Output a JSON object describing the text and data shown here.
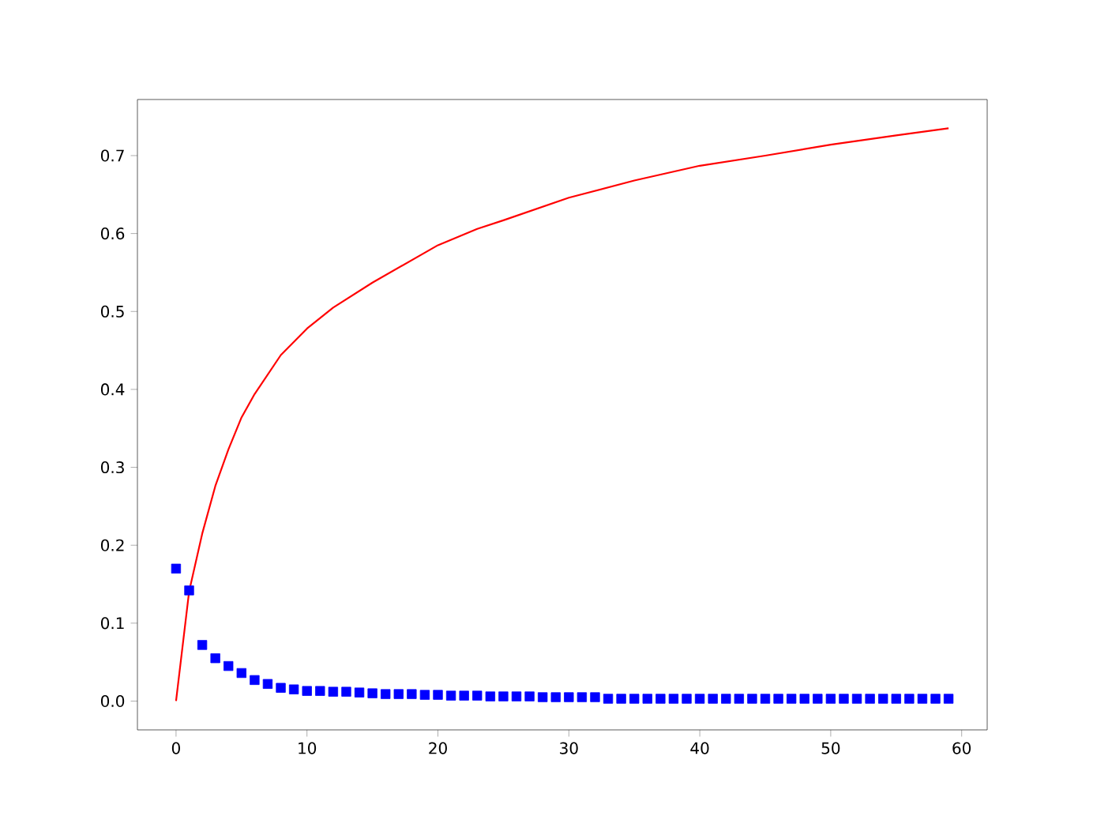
{
  "chart_data": {
    "type": "line",
    "xlim": [
      -2.95,
      61.95
    ],
    "ylim": [
      -0.037,
      0.772
    ],
    "xticks": [
      0,
      10,
      20,
      30,
      40,
      50,
      60
    ],
    "yticks": [
      {
        "value": 0,
        "label": "0.0"
      },
      {
        "value": 0.1,
        "label": "0.1"
      },
      {
        "value": 0.2,
        "label": "0.2"
      },
      {
        "value": 0.3,
        "label": "0.3"
      },
      {
        "value": 0.4,
        "label": "0.4"
      },
      {
        "value": 0.5,
        "label": "0.5"
      },
      {
        "value": 0.6,
        "label": "0.6"
      },
      {
        "value": 0.7,
        "label": "0.7"
      }
    ],
    "series": [
      {
        "color": "#ff0000",
        "marker": "none",
        "line_style": "solid",
        "x": [
          0,
          1,
          2,
          3,
          4,
          5,
          6,
          8,
          10,
          12,
          15,
          20,
          23,
          25,
          30,
          35,
          40,
          45,
          50,
          55,
          59
        ],
        "values": [
          0,
          0.141,
          0.215,
          0.276,
          0.323,
          0.364,
          0.394,
          0.444,
          0.478,
          0.505,
          0.537,
          0.585,
          0.606,
          0.617,
          0.646,
          0.668,
          0.687,
          0.7,
          0.714,
          0.726,
          0.735
        ]
      },
      {
        "type": "scatter",
        "color": "#0000ff",
        "marker": "square",
        "x": [
          0,
          1,
          2,
          3,
          4,
          5,
          6,
          7,
          8,
          9,
          10,
          11,
          12,
          13,
          14,
          15,
          16,
          17,
          18,
          19,
          20,
          21,
          22,
          23,
          24,
          25,
          26,
          27,
          28,
          29,
          30,
          31,
          32,
          33,
          34,
          35,
          36,
          37,
          38,
          39,
          40,
          41,
          42,
          43,
          44,
          45,
          46,
          47,
          48,
          49,
          50,
          51,
          52,
          53,
          54,
          55,
          56,
          57,
          58,
          59
        ],
        "values": [
          0.17,
          0.142,
          0.072,
          0.055,
          0.045,
          0.036,
          0.027,
          0.022,
          0.017,
          0.015,
          0.013,
          0.013,
          0.012,
          0.012,
          0.011,
          0.01,
          0.009,
          0.009,
          0.009,
          0.008,
          0.008,
          0.007,
          0.007,
          0.007,
          0.006,
          0.006,
          0.006,
          0.006,
          0.005,
          0.005,
          0.005,
          0.005,
          0.005,
          0.003,
          0.003,
          0.003,
          0.003,
          0.003,
          0.003,
          0.003,
          0.003,
          0.003,
          0.003,
          0.003,
          0.003,
          0.003,
          0.003,
          0.003,
          0.003,
          0.003,
          0.003,
          0.003,
          0.003,
          0.003,
          0.003,
          0.003,
          0.003,
          0.003,
          0.003,
          0.003
        ]
      }
    ]
  }
}
